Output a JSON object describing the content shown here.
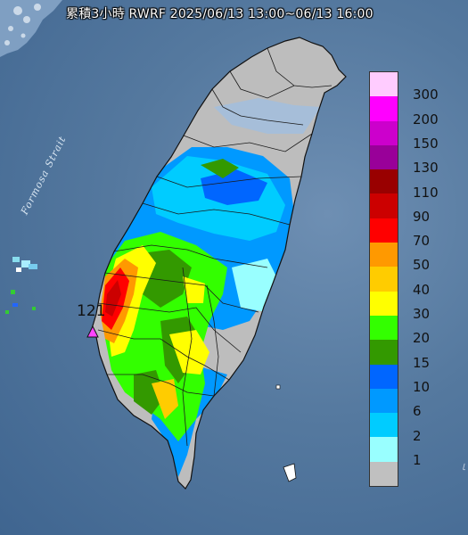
{
  "title": "累積3小時 RWRF 2025/06/13 13:00~06/13 16:00",
  "strait_label": "Formosa Strait",
  "peak_value_label": "121",
  "corner_text": "ｌ",
  "legend": {
    "labels": [
      "300",
      "200",
      "150",
      "130",
      "110",
      "90",
      "70",
      "50",
      "40",
      "30",
      "20",
      "15",
      "10",
      "6",
      "2",
      "1"
    ],
    "colors": [
      "#ffccff",
      "#ff00ff",
      "#cc00cc",
      "#990099",
      "#990000",
      "#cc0000",
      "#ff0000",
      "#ff9900",
      "#ffcc00",
      "#ffff00",
      "#33ff00",
      "#339900",
      "#0066ff",
      "#0099ff",
      "#00ccff",
      "#99ffff",
      "#c0c0c0"
    ]
  },
  "colors": {
    "sea": "#55799f",
    "land_no_rain": "#c0c0c0",
    "peak_marker": "#ff44ff"
  }
}
